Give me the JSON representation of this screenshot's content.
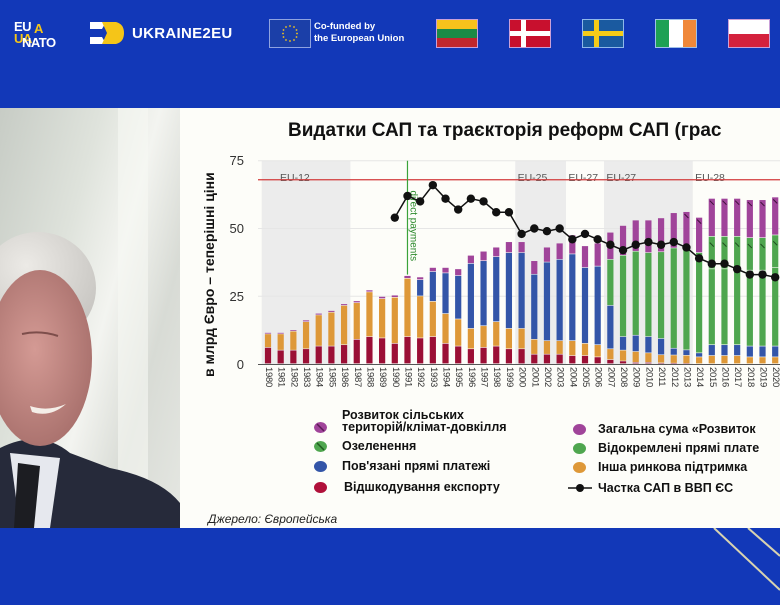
{
  "header": {
    "logos": {
      "euua_lines": [
        "EU",
        "UA",
        "NATO"
      ],
      "ukraine2eu": "UKRAINE2EU",
      "eu_cofunded": [
        "Co-funded by",
        "the European Union"
      ]
    },
    "flags": [
      {
        "country": "Lithuania",
        "stripes": [
          "#f6c21c",
          "#1c8a46",
          "#c1272d"
        ]
      },
      {
        "country": "Denmark",
        "base": "#c8102e",
        "cross": "#ffffff"
      },
      {
        "country": "Sweden",
        "base": "#1a5aa0",
        "cross": "#f6cc18"
      },
      {
        "country": "Ireland",
        "stripes": [
          "#1ea154",
          "#ffffff",
          "#f0883a"
        ]
      },
      {
        "country": "Poland",
        "stripes": [
          "#ffffff",
          "#d4213d"
        ]
      }
    ]
  },
  "video": {
    "label": "speaker-video-feed"
  },
  "slide": {
    "title": "Видатки САП та траєкторія реформ САП (грас",
    "source": "Джерело: Європейська"
  },
  "colors": {
    "brand_blue": "#1238b8",
    "rural": "#a0449a",
    "greening": "#4fa64f",
    "coupled": "#3355a8",
    "export": "#9b0f35",
    "decoupled": "#4fa64f",
    "market": "#de9838",
    "gdp_line": "#111111",
    "ref_line": "#d23a3a",
    "dp_line": "#3aa33a"
  },
  "chart_data": {
    "type": "bar",
    "stacked": true,
    "title": "Видатки САП та траєкторія реформ САП (грас",
    "ylabel": "в млрд Євро – теперішні ціни",
    "xlabel": "",
    "ylim": [
      0,
      75
    ],
    "yticks": [
      0,
      25,
      50,
      75
    ],
    "grid": true,
    "categories": [
      "1980",
      "1981",
      "1982",
      "1983",
      "1984",
      "1985",
      "1986",
      "1987",
      "1988",
      "1989",
      "1990",
      "1991",
      "1992",
      "1993",
      "1994",
      "1995",
      "1996",
      "1997",
      "1998",
      "1999",
      "2000",
      "2001",
      "2002",
      "2003",
      "2004",
      "2005",
      "2006",
      "2007",
      "2008",
      "2009",
      "2010",
      "2011",
      "2012",
      "2013",
      "2014",
      "2015",
      "2016",
      "2017",
      "2018",
      "2019",
      "2020"
    ],
    "series": [
      {
        "name": "Відшкодування експорту",
        "values": [
          6,
          5,
          5,
          5.5,
          6.5,
          6.5,
          7,
          9,
          10,
          9.5,
          7.5,
          10,
          9.5,
          10,
          7.5,
          6.5,
          5.5,
          6,
          6.5,
          5.5,
          5.5,
          3.5,
          3.5,
          3.5,
          3,
          3,
          2.5,
          1.5,
          1,
          0.5,
          0.5,
          0.3,
          0.2,
          0.1,
          0,
          0,
          0,
          0,
          0,
          0,
          0
        ]
      },
      {
        "name": "Інша ринкова підтримка",
        "values": [
          5,
          6,
          7,
          10,
          11.5,
          12.5,
          14.5,
          13.5,
          16.5,
          14.5,
          17,
          21.5,
          15.5,
          13,
          11,
          10,
          7.5,
          8,
          9,
          7.5,
          7.5,
          5.5,
          5,
          5,
          5.5,
          4.5,
          4.5,
          4,
          4,
          4,
          3.5,
          3,
          3,
          3,
          2.5,
          3,
          3,
          3,
          2.5,
          2.5,
          2.5
        ]
      },
      {
        "name": "Пов'язані прямі платежі",
        "values": [
          0,
          0,
          0,
          0,
          0,
          0,
          0,
          0,
          0,
          0,
          0,
          0,
          6,
          11,
          15,
          16,
          24,
          24,
          24,
          28,
          28,
          24,
          29,
          30,
          32,
          28,
          29,
          16,
          5,
          6,
          6,
          6,
          2.5,
          2,
          1.5,
          4,
          4,
          4,
          4,
          4,
          4
        ]
      },
      {
        "name": "Відокремлені прямі платежі",
        "values": [
          0,
          0,
          0,
          0,
          0,
          0,
          0,
          0,
          0,
          0,
          0,
          0,
          0,
          0,
          0,
          0,
          0,
          0,
          0,
          0,
          0,
          0,
          0,
          0,
          0,
          0,
          0,
          17,
          30,
          31,
          31,
          32,
          37,
          38,
          37,
          28,
          28,
          28,
          28,
          28,
          29
        ]
      },
      {
        "name": "Озеленення",
        "values": [
          0,
          0,
          0,
          0,
          0,
          0,
          0,
          0,
          0,
          0,
          0,
          0,
          0,
          0,
          0,
          0,
          0,
          0,
          0,
          0,
          0,
          0,
          0,
          0,
          0,
          0,
          0,
          0,
          0,
          0,
          0,
          0,
          0,
          0,
          0,
          12,
          12,
          12,
          12,
          12,
          12
        ]
      },
      {
        "name": "Розвиток сільських територій/клімат-довкілля",
        "values": [
          0.5,
          0.5,
          0.5,
          0.6,
          0.6,
          0.6,
          0.6,
          0.7,
          0.7,
          0.8,
          0.8,
          1,
          1,
          1.5,
          2,
          2.5,
          3,
          3.5,
          3.5,
          4,
          4,
          5,
          5.5,
          6,
          7,
          8,
          8.5,
          10,
          11,
          11.5,
          12,
          12.5,
          13,
          13,
          13,
          14,
          14,
          14,
          14,
          14,
          14
        ]
      }
    ],
    "line": {
      "name": "Частка САП в ВВП ЄС",
      "start_year": "1990",
      "values": [
        54,
        62,
        60,
        66,
        61,
        57,
        61,
        60,
        56,
        56,
        48,
        50,
        49,
        50,
        46,
        48,
        46,
        44,
        42,
        44,
        45,
        44,
        45,
        43,
        39,
        37,
        37,
        35,
        33,
        33,
        32
      ]
    },
    "reference_line": {
      "value": 68,
      "color": "#d23a3a"
    },
    "vertical_marker": {
      "year": "1991",
      "label": "direct payments"
    },
    "period_labels": [
      {
        "label": "EU-12",
        "from": "1980",
        "to": "1986",
        "shaded": true
      },
      {
        "label": "EU-25",
        "from": "2000",
        "to": "2003",
        "shaded": true
      },
      {
        "label": "EU-27",
        "from": "2004",
        "to": "2006",
        "shaded": false
      },
      {
        "label": "EU-27",
        "from": "2007",
        "to": "2013",
        "shaded": true
      },
      {
        "label": "EU-28",
        "from": "2014",
        "to": "2020",
        "shaded": false
      }
    ],
    "legend": [
      {
        "label": "Розвиток сільських територій/клімат-довкілля",
        "color": "#a0449a",
        "hatched": true
      },
      {
        "label": "Загальна сума «Розвиток",
        "color": "#a0449a",
        "hatched": false
      },
      {
        "label": "Озеленення",
        "color": "#4fa64f",
        "hatched": true
      },
      {
        "label": "Відокремлені прямі плате",
        "color": "#4fa64f",
        "hatched": false
      },
      {
        "label": "Пов'язані прямі платежі",
        "color": "#3355a8",
        "hatched": false
      },
      {
        "label": "Інша ринкова підтримка",
        "color": "#de9838",
        "hatched": false
      },
      {
        "label": "Відшкодування експорту",
        "color": "#9b0f35",
        "hatched": false
      },
      {
        "label": "Частка САП в ВВП ЄС",
        "color": "#111111",
        "marker": "line-dot"
      }
    ],
    "legend_position": "bottom"
  }
}
